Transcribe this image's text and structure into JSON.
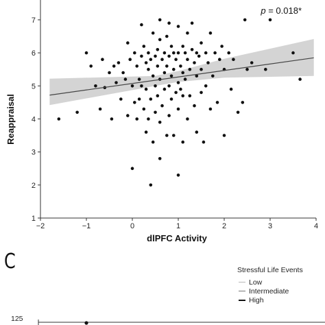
{
  "chart_data": {
    "type": "scatter",
    "xlabel": "dlPFC Activity",
    "ylabel": "Reappraisal",
    "annotation": {
      "p_symbol": "p",
      "p_text": " = 0.018*"
    },
    "xlim": [
      -2,
      4
    ],
    "ylim": [
      1,
      7.6
    ],
    "xticks": [
      -2,
      -1,
      0,
      1,
      2,
      3,
      4
    ],
    "yticks": [
      1,
      2,
      3,
      4,
      5,
      6,
      7
    ],
    "fit_line": {
      "x": [
        -1.8,
        3.95
      ],
      "y": [
        4.72,
        5.85
      ]
    },
    "confidence_band": {
      "x": [
        -1.8,
        0.5,
        1.0,
        2.0,
        3.95
      ],
      "lower": [
        4.42,
        5.0,
        5.12,
        5.25,
        5.3
      ],
      "upper": [
        5.22,
        5.3,
        5.45,
        5.82,
        6.42
      ]
    },
    "points": [
      [
        -1.6,
        4.0
      ],
      [
        -1.2,
        4.2
      ],
      [
        -1.0,
        6.0
      ],
      [
        -0.9,
        5.6
      ],
      [
        -0.8,
        5.0
      ],
      [
        -0.7,
        4.3
      ],
      [
        -0.65,
        5.8
      ],
      [
        -0.6,
        4.95
      ],
      [
        -0.5,
        5.4
      ],
      [
        -0.45,
        4.0
      ],
      [
        -0.4,
        5.6
      ],
      [
        -0.35,
        5.1
      ],
      [
        -0.3,
        5.7
      ],
      [
        -0.25,
        4.6
      ],
      [
        -0.2,
        5.4
      ],
      [
        -0.15,
        5.2
      ],
      [
        -0.1,
        6.3
      ],
      [
        -0.1,
        4.1
      ],
      [
        -0.05,
        5.8
      ],
      [
        0.0,
        5.0
      ],
      [
        0.0,
        2.5
      ],
      [
        0.05,
        6.0
      ],
      [
        0.05,
        4.5
      ],
      [
        0.1,
        5.6
      ],
      [
        0.1,
        4.0
      ],
      [
        0.15,
        5.2
      ],
      [
        0.15,
        4.6
      ],
      [
        0.2,
        6.85
      ],
      [
        0.2,
        5.9
      ],
      [
        0.2,
        5.0
      ],
      [
        0.25,
        6.2
      ],
      [
        0.25,
        4.3
      ],
      [
        0.3,
        5.7
      ],
      [
        0.3,
        4.9
      ],
      [
        0.3,
        3.6
      ],
      [
        0.35,
        6.0
      ],
      [
        0.35,
        5.5
      ],
      [
        0.35,
        4.0
      ],
      [
        0.4,
        5.8
      ],
      [
        0.4,
        4.6
      ],
      [
        0.4,
        2.0
      ],
      [
        0.45,
        6.6
      ],
      [
        0.45,
        5.3
      ],
      [
        0.45,
        3.3
      ],
      [
        0.5,
        5.9
      ],
      [
        0.5,
        5.0
      ],
      [
        0.5,
        4.2
      ],
      [
        0.55,
        6.1
      ],
      [
        0.55,
        5.6
      ],
      [
        0.55,
        4.7
      ],
      [
        0.6,
        7.0
      ],
      [
        0.6,
        6.4
      ],
      [
        0.6,
        5.2
      ],
      [
        0.6,
        3.9
      ],
      [
        0.6,
        2.8
      ],
      [
        0.65,
        5.8
      ],
      [
        0.65,
        4.4
      ],
      [
        0.7,
        6.0
      ],
      [
        0.7,
        5.4
      ],
      [
        0.7,
        4.9
      ],
      [
        0.75,
        6.5
      ],
      [
        0.75,
        5.6
      ],
      [
        0.75,
        3.5
      ],
      [
        0.8,
        6.9
      ],
      [
        0.8,
        5.9
      ],
      [
        0.8,
        5.0
      ],
      [
        0.8,
        4.1
      ],
      [
        0.85,
        6.2
      ],
      [
        0.85,
        5.3
      ],
      [
        0.85,
        4.6
      ],
      [
        0.9,
        6.0
      ],
      [
        0.9,
        5.5
      ],
      [
        0.9,
        3.5
      ],
      [
        0.95,
        5.8
      ],
      [
        0.95,
        4.8
      ],
      [
        1.0,
        6.8
      ],
      [
        1.0,
        6.0
      ],
      [
        1.0,
        5.1
      ],
      [
        1.0,
        4.3
      ],
      [
        1.0,
        2.3
      ],
      [
        1.05,
        5.6
      ],
      [
        1.05,
        4.9
      ],
      [
        1.1,
        6.2
      ],
      [
        1.1,
        5.4
      ],
      [
        1.1,
        4.7
      ],
      [
        1.1,
        3.3
      ],
      [
        1.15,
        6.0
      ],
      [
        1.15,
        5.2
      ],
      [
        1.2,
        6.6
      ],
      [
        1.2,
        5.8
      ],
      [
        1.2,
        4.0
      ],
      [
        1.25,
        5.5
      ],
      [
        1.25,
        4.7
      ],
      [
        1.3,
        6.9
      ],
      [
        1.3,
        6.1
      ],
      [
        1.35,
        5.7
      ],
      [
        1.35,
        4.4
      ],
      [
        1.4,
        6.0
      ],
      [
        1.4,
        5.3
      ],
      [
        1.4,
        3.6
      ],
      [
        1.45,
        5.9
      ],
      [
        1.5,
        6.3
      ],
      [
        1.5,
        5.5
      ],
      [
        1.5,
        4.8
      ],
      [
        1.55,
        3.3
      ],
      [
        1.6,
        6.0
      ],
      [
        1.6,
        5.0
      ],
      [
        1.65,
        5.7
      ],
      [
        1.7,
        6.6
      ],
      [
        1.7,
        4.3
      ],
      [
        1.75,
        5.3
      ],
      [
        1.8,
        6.0
      ],
      [
        1.85,
        4.5
      ],
      [
        1.9,
        5.8
      ],
      [
        1.95,
        6.2
      ],
      [
        2.0,
        5.5
      ],
      [
        2.0,
        3.5
      ],
      [
        2.1,
        6.0
      ],
      [
        2.15,
        4.9
      ],
      [
        2.2,
        5.8
      ],
      [
        2.3,
        4.2
      ],
      [
        2.4,
        4.5
      ],
      [
        2.45,
        7.0
      ],
      [
        2.5,
        5.5
      ],
      [
        2.6,
        5.7
      ],
      [
        2.9,
        5.5
      ],
      [
        3.0,
        7.0
      ],
      [
        3.5,
        6.0
      ],
      [
        3.65,
        5.2
      ]
    ]
  },
  "panel_letter": "C",
  "legend": {
    "title": "Stressful Life Events",
    "items": [
      "Low",
      "Intermediate",
      "High"
    ]
  },
  "next_panel": {
    "ytick_top": "125"
  }
}
